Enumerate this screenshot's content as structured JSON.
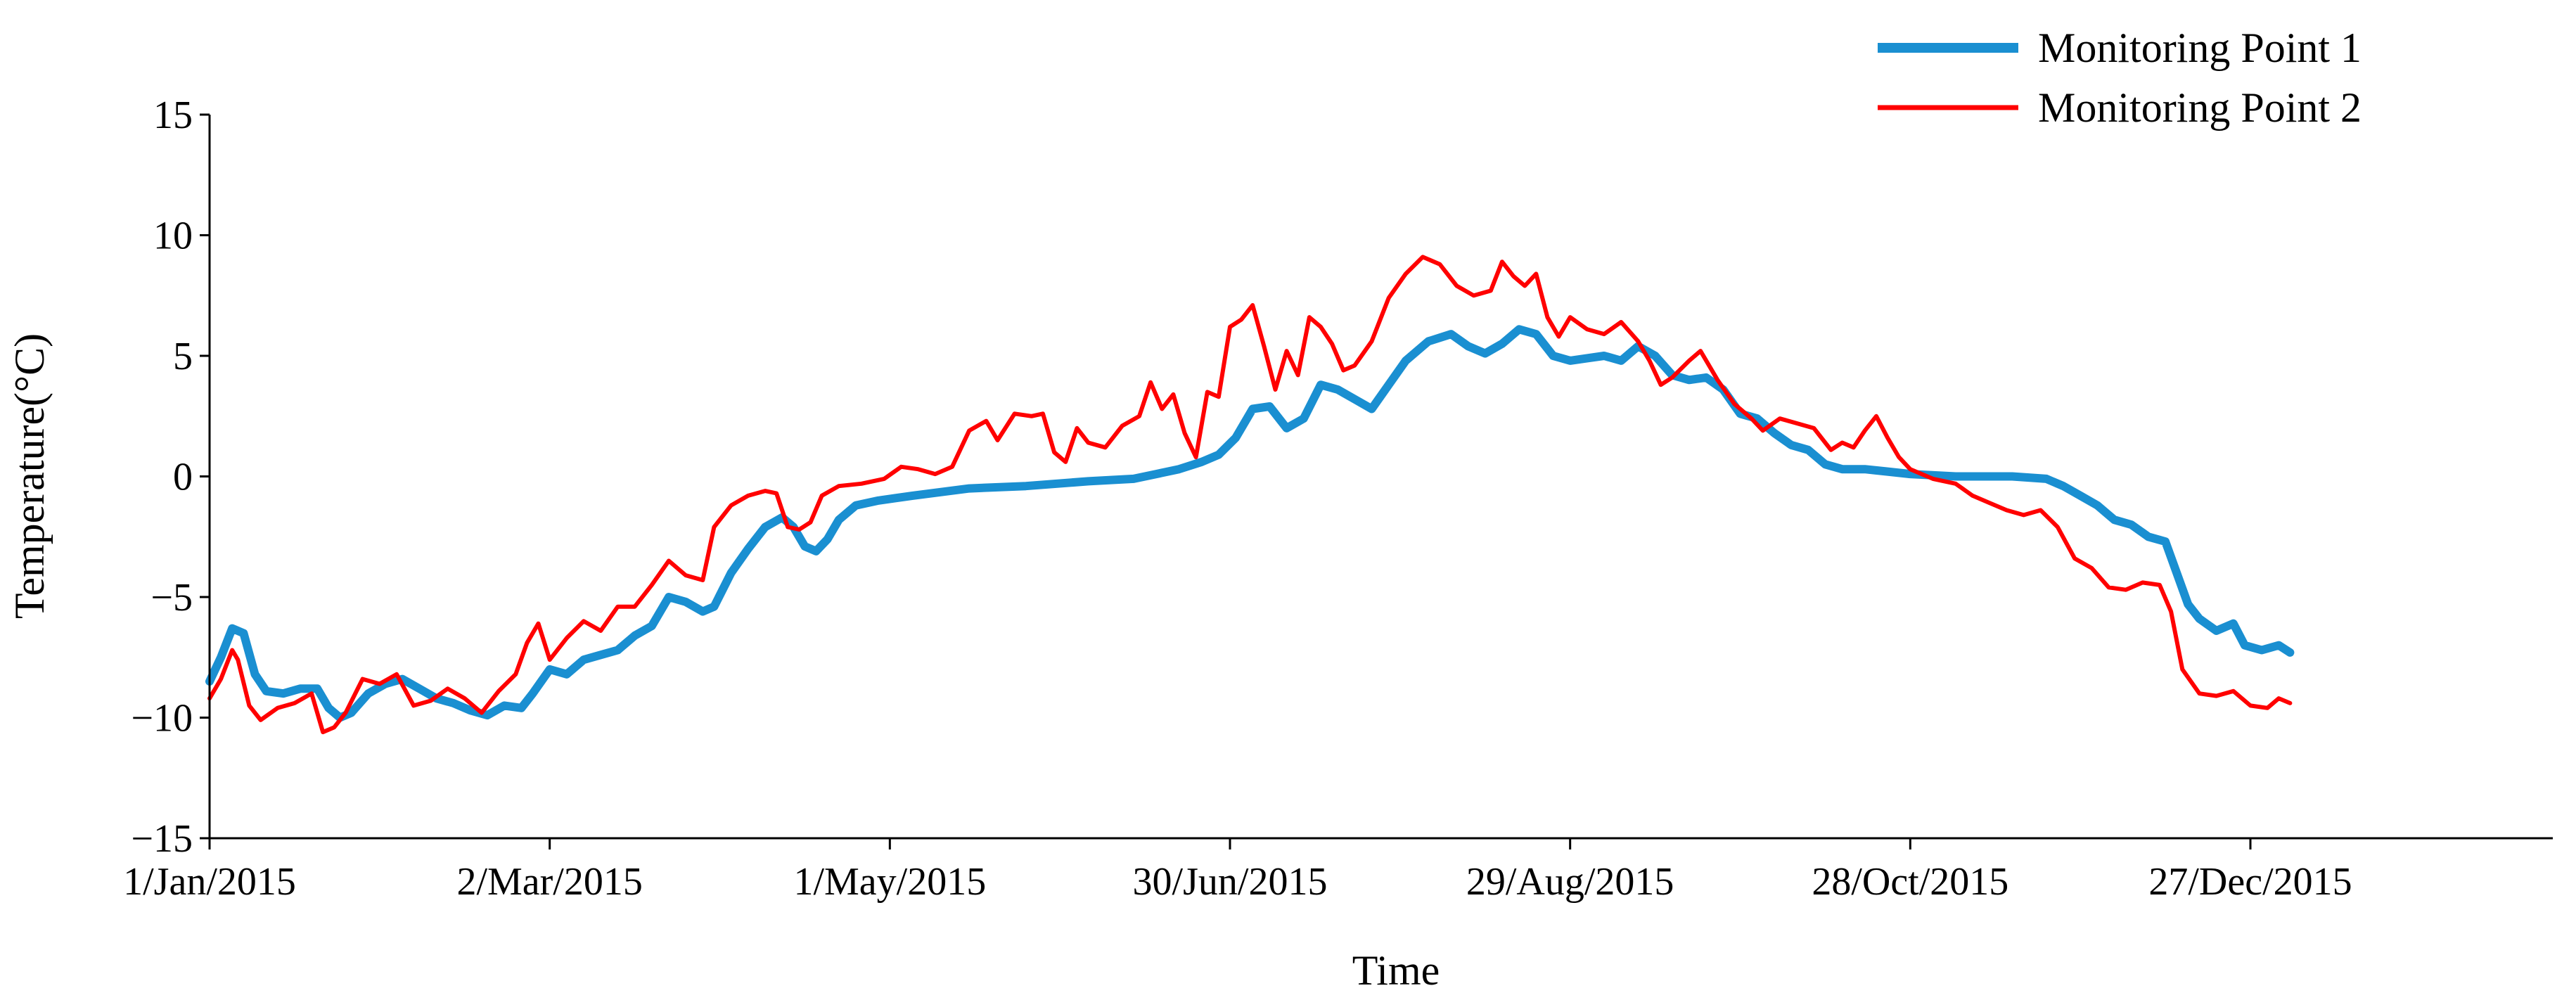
{
  "chart_data": {
    "type": "line",
    "title": "",
    "xlabel": "Time",
    "ylabel": "Temperature(°C)",
    "ylim": [
      -15,
      15
    ],
    "yticks": [
      -15,
      -10,
      -5,
      0,
      5,
      10,
      15
    ],
    "xlim": [
      "2015-01-01",
      "2016-01-06"
    ],
    "xticks": [
      {
        "date": "2015-01-01",
        "label": "1/Jan/2015"
      },
      {
        "date": "2015-03-02",
        "label": "2/Mar/2015"
      },
      {
        "date": "2015-05-01",
        "label": "1/May/2015"
      },
      {
        "date": "2015-06-30",
        "label": "30/Jun/2015"
      },
      {
        "date": "2015-08-29",
        "label": "29/Aug/2015"
      },
      {
        "date": "2015-10-28",
        "label": "28/Oct/2015"
      },
      {
        "date": "2015-12-27",
        "label": "27/Dec/2015"
      }
    ],
    "grid": false,
    "legend": "top-right",
    "series": [
      {
        "name": "Monitoring Point 1",
        "color": "#1a8fd1",
        "points": [
          [
            "2015-01-01",
            -8.5
          ],
          [
            "2015-01-03",
            -7.5
          ],
          [
            "2015-01-05",
            -6.3
          ],
          [
            "2015-01-07",
            -6.5
          ],
          [
            "2015-01-09",
            -8.2
          ],
          [
            "2015-01-11",
            -8.9
          ],
          [
            "2015-01-14",
            -9.0
          ],
          [
            "2015-01-17",
            -8.8
          ],
          [
            "2015-01-20",
            -8.8
          ],
          [
            "2015-01-22",
            -9.6
          ],
          [
            "2015-01-24",
            -10.0
          ],
          [
            "2015-01-26",
            -9.8
          ],
          [
            "2015-01-29",
            -9.0
          ],
          [
            "2015-02-01",
            -8.6
          ],
          [
            "2015-02-04",
            -8.4
          ],
          [
            "2015-02-07",
            -8.8
          ],
          [
            "2015-02-10",
            -9.2
          ],
          [
            "2015-02-13",
            -9.4
          ],
          [
            "2015-02-16",
            -9.7
          ],
          [
            "2015-02-19",
            -9.9
          ],
          [
            "2015-02-22",
            -9.5
          ],
          [
            "2015-02-25",
            -9.6
          ],
          [
            "2015-02-27",
            -9.0
          ],
          [
            "2015-03-02",
            -8.0
          ],
          [
            "2015-03-05",
            -8.2
          ],
          [
            "2015-03-08",
            -7.6
          ],
          [
            "2015-03-11",
            -7.4
          ],
          [
            "2015-03-14",
            -7.2
          ],
          [
            "2015-03-17",
            -6.6
          ],
          [
            "2015-03-20",
            -6.2
          ],
          [
            "2015-03-23",
            -5.0
          ],
          [
            "2015-03-26",
            -5.2
          ],
          [
            "2015-03-29",
            -5.6
          ],
          [
            "2015-03-31",
            -5.4
          ],
          [
            "2015-04-03",
            -4.0
          ],
          [
            "2015-04-06",
            -3.0
          ],
          [
            "2015-04-09",
            -2.1
          ],
          [
            "2015-04-12",
            -1.7
          ],
          [
            "2015-04-14",
            -2.1
          ],
          [
            "2015-04-16",
            -2.9
          ],
          [
            "2015-04-18",
            -3.1
          ],
          [
            "2015-04-20",
            -2.6
          ],
          [
            "2015-04-22",
            -1.8
          ],
          [
            "2015-04-25",
            -1.2
          ],
          [
            "2015-04-29",
            -1.0
          ],
          [
            "2015-05-05",
            -0.8
          ],
          [
            "2015-05-15",
            -0.5
          ],
          [
            "2015-05-25",
            -0.4
          ],
          [
            "2015-06-05",
            -0.2
          ],
          [
            "2015-06-13",
            -0.1
          ],
          [
            "2015-06-17",
            0.1
          ],
          [
            "2015-06-21",
            0.3
          ],
          [
            "2015-06-25",
            0.6
          ],
          [
            "2015-06-28",
            0.9
          ],
          [
            "2015-07-01",
            1.6
          ],
          [
            "2015-07-04",
            2.8
          ],
          [
            "2015-07-07",
            2.9
          ],
          [
            "2015-07-10",
            2.0
          ],
          [
            "2015-07-13",
            2.4
          ],
          [
            "2015-07-16",
            3.8
          ],
          [
            "2015-07-19",
            3.6
          ],
          [
            "2015-07-22",
            3.2
          ],
          [
            "2015-07-25",
            2.8
          ],
          [
            "2015-07-28",
            3.8
          ],
          [
            "2015-07-31",
            4.8
          ],
          [
            "2015-08-04",
            5.6
          ],
          [
            "2015-08-08",
            5.9
          ],
          [
            "2015-08-11",
            5.4
          ],
          [
            "2015-08-14",
            5.1
          ],
          [
            "2015-08-17",
            5.5
          ],
          [
            "2015-08-20",
            6.1
          ],
          [
            "2015-08-23",
            5.9
          ],
          [
            "2015-08-26",
            5.0
          ],
          [
            "2015-08-29",
            4.8
          ],
          [
            "2015-09-01",
            4.9
          ],
          [
            "2015-09-04",
            5.0
          ],
          [
            "2015-09-07",
            4.8
          ],
          [
            "2015-09-10",
            5.4
          ],
          [
            "2015-09-13",
            5.0
          ],
          [
            "2015-09-16",
            4.2
          ],
          [
            "2015-09-19",
            4.0
          ],
          [
            "2015-09-22",
            4.1
          ],
          [
            "2015-09-25",
            3.6
          ],
          [
            "2015-09-28",
            2.6
          ],
          [
            "2015-10-01",
            2.4
          ],
          [
            "2015-10-04",
            1.8
          ],
          [
            "2015-10-07",
            1.3
          ],
          [
            "2015-10-10",
            1.1
          ],
          [
            "2015-10-13",
            0.5
          ],
          [
            "2015-10-16",
            0.3
          ],
          [
            "2015-10-20",
            0.3
          ],
          [
            "2015-10-24",
            0.2
          ],
          [
            "2015-10-28",
            0.1
          ],
          [
            "2015-11-05",
            0.0
          ],
          [
            "2015-11-15",
            0.0
          ],
          [
            "2015-11-21",
            -0.1
          ],
          [
            "2015-11-24",
            -0.4
          ],
          [
            "2015-11-27",
            -0.8
          ],
          [
            "2015-11-30",
            -1.2
          ],
          [
            "2015-12-03",
            -1.8
          ],
          [
            "2015-12-06",
            -2.0
          ],
          [
            "2015-12-09",
            -2.5
          ],
          [
            "2015-12-12",
            -2.7
          ],
          [
            "2015-12-14",
            -4.0
          ],
          [
            "2015-12-16",
            -5.3
          ],
          [
            "2015-12-18",
            -5.9
          ],
          [
            "2015-12-21",
            -6.4
          ],
          [
            "2015-12-24",
            -6.1
          ],
          [
            "2015-12-26",
            -7.0
          ],
          [
            "2015-12-29",
            -7.2
          ],
          [
            "2016-01-01",
            -7.0
          ],
          [
            "2016-01-03",
            -7.3
          ]
        ]
      },
      {
        "name": "Monitoring Point 2",
        "color": "#ff0000",
        "points": [
          [
            "2015-01-01",
            -9.2
          ],
          [
            "2015-01-03",
            -8.4
          ],
          [
            "2015-01-05",
            -7.2
          ],
          [
            "2015-01-06",
            -7.6
          ],
          [
            "2015-01-08",
            -9.5
          ],
          [
            "2015-01-10",
            -10.1
          ],
          [
            "2015-01-13",
            -9.6
          ],
          [
            "2015-01-16",
            -9.4
          ],
          [
            "2015-01-19",
            -9.0
          ],
          [
            "2015-01-21",
            -10.6
          ],
          [
            "2015-01-23",
            -10.4
          ],
          [
            "2015-01-25",
            -9.8
          ],
          [
            "2015-01-28",
            -8.4
          ],
          [
            "2015-01-31",
            -8.6
          ],
          [
            "2015-02-03",
            -8.2
          ],
          [
            "2015-02-06",
            -9.5
          ],
          [
            "2015-02-09",
            -9.3
          ],
          [
            "2015-02-12",
            -8.8
          ],
          [
            "2015-02-15",
            -9.2
          ],
          [
            "2015-02-18",
            -9.8
          ],
          [
            "2015-02-21",
            -8.9
          ],
          [
            "2015-02-24",
            -8.2
          ],
          [
            "2015-02-26",
            -6.9
          ],
          [
            "2015-02-28",
            -6.1
          ],
          [
            "2015-03-02",
            -7.6
          ],
          [
            "2015-03-05",
            -6.7
          ],
          [
            "2015-03-08",
            -6.0
          ],
          [
            "2015-03-11",
            -6.4
          ],
          [
            "2015-03-14",
            -5.4
          ],
          [
            "2015-03-17",
            -5.4
          ],
          [
            "2015-03-20",
            -4.5
          ],
          [
            "2015-03-23",
            -3.5
          ],
          [
            "2015-03-26",
            -4.1
          ],
          [
            "2015-03-29",
            -4.3
          ],
          [
            "2015-03-31",
            -2.1
          ],
          [
            "2015-04-03",
            -1.2
          ],
          [
            "2015-04-06",
            -0.8
          ],
          [
            "2015-04-09",
            -0.6
          ],
          [
            "2015-04-11",
            -0.7
          ],
          [
            "2015-04-13",
            -2.1
          ],
          [
            "2015-04-15",
            -2.2
          ],
          [
            "2015-04-17",
            -1.9
          ],
          [
            "2015-04-19",
            -0.8
          ],
          [
            "2015-04-22",
            -0.4
          ],
          [
            "2015-04-26",
            -0.3
          ],
          [
            "2015-04-30",
            -0.1
          ],
          [
            "2015-05-03",
            0.4
          ],
          [
            "2015-05-06",
            0.3
          ],
          [
            "2015-05-09",
            0.1
          ],
          [
            "2015-05-12",
            0.4
          ],
          [
            "2015-05-15",
            1.9
          ],
          [
            "2015-05-18",
            2.3
          ],
          [
            "2015-05-20",
            1.5
          ],
          [
            "2015-05-23",
            2.6
          ],
          [
            "2015-05-26",
            2.5
          ],
          [
            "2015-05-28",
            2.6
          ],
          [
            "2015-05-30",
            1.0
          ],
          [
            "2015-06-01",
            0.6
          ],
          [
            "2015-06-03",
            2.0
          ],
          [
            "2015-06-05",
            1.4
          ],
          [
            "2015-06-08",
            1.2
          ],
          [
            "2015-06-11",
            2.1
          ],
          [
            "2015-06-14",
            2.5
          ],
          [
            "2015-06-16",
            3.9
          ],
          [
            "2015-06-18",
            2.8
          ],
          [
            "2015-06-20",
            3.4
          ],
          [
            "2015-06-22",
            1.8
          ],
          [
            "2015-06-24",
            0.8
          ],
          [
            "2015-06-26",
            3.5
          ],
          [
            "2015-06-28",
            3.3
          ],
          [
            "2015-06-30",
            6.2
          ],
          [
            "2015-07-02",
            6.5
          ],
          [
            "2015-07-04",
            7.1
          ],
          [
            "2015-07-06",
            5.4
          ],
          [
            "2015-07-08",
            3.6
          ],
          [
            "2015-07-10",
            5.2
          ],
          [
            "2015-07-12",
            4.2
          ],
          [
            "2015-07-14",
            6.6
          ],
          [
            "2015-07-16",
            6.2
          ],
          [
            "2015-07-18",
            5.5
          ],
          [
            "2015-07-20",
            4.4
          ],
          [
            "2015-07-22",
            4.6
          ],
          [
            "2015-07-25",
            5.6
          ],
          [
            "2015-07-28",
            7.4
          ],
          [
            "2015-07-31",
            8.4
          ],
          [
            "2015-08-03",
            9.1
          ],
          [
            "2015-08-06",
            8.8
          ],
          [
            "2015-08-09",
            7.9
          ],
          [
            "2015-08-12",
            7.5
          ],
          [
            "2015-08-15",
            7.7
          ],
          [
            "2015-08-17",
            8.9
          ],
          [
            "2015-08-19",
            8.3
          ],
          [
            "2015-08-21",
            7.9
          ],
          [
            "2015-08-23",
            8.4
          ],
          [
            "2015-08-25",
            6.6
          ],
          [
            "2015-08-27",
            5.8
          ],
          [
            "2015-08-29",
            6.6
          ],
          [
            "2015-09-01",
            6.1
          ],
          [
            "2015-09-04",
            5.9
          ],
          [
            "2015-09-07",
            6.4
          ],
          [
            "2015-09-10",
            5.6
          ],
          [
            "2015-09-12",
            4.8
          ],
          [
            "2015-09-14",
            3.8
          ],
          [
            "2015-09-16",
            4.1
          ],
          [
            "2015-09-19",
            4.8
          ],
          [
            "2015-09-21",
            5.2
          ],
          [
            "2015-09-24",
            4.0
          ],
          [
            "2015-09-27",
            3.0
          ],
          [
            "2015-09-30",
            2.4
          ],
          [
            "2015-10-02",
            1.9
          ],
          [
            "2015-10-05",
            2.4
          ],
          [
            "2015-10-08",
            2.2
          ],
          [
            "2015-10-11",
            2.0
          ],
          [
            "2015-10-14",
            1.1
          ],
          [
            "2015-10-16",
            1.4
          ],
          [
            "2015-10-18",
            1.2
          ],
          [
            "2015-10-20",
            1.9
          ],
          [
            "2015-10-22",
            2.5
          ],
          [
            "2015-10-24",
            1.6
          ],
          [
            "2015-10-26",
            0.8
          ],
          [
            "2015-10-28",
            0.3
          ],
          [
            "2015-11-01",
            -0.1
          ],
          [
            "2015-11-05",
            -0.3
          ],
          [
            "2015-11-08",
            -0.8
          ],
          [
            "2015-11-11",
            -1.1
          ],
          [
            "2015-11-14",
            -1.4
          ],
          [
            "2015-11-17",
            -1.6
          ],
          [
            "2015-11-20",
            -1.4
          ],
          [
            "2015-11-23",
            -2.1
          ],
          [
            "2015-11-26",
            -3.4
          ],
          [
            "2015-11-29",
            -3.8
          ],
          [
            "2015-12-02",
            -4.6
          ],
          [
            "2015-12-05",
            -4.7
          ],
          [
            "2015-12-08",
            -4.4
          ],
          [
            "2015-12-11",
            -4.5
          ],
          [
            "2015-12-13",
            -5.6
          ],
          [
            "2015-12-15",
            -8.0
          ],
          [
            "2015-12-18",
            -9.0
          ],
          [
            "2015-12-21",
            -9.1
          ],
          [
            "2015-12-24",
            -8.9
          ],
          [
            "2015-12-27",
            -9.5
          ],
          [
            "2015-12-30",
            -9.6
          ],
          [
            "2016-01-01",
            -9.2
          ],
          [
            "2016-01-03",
            -9.4
          ]
        ]
      }
    ]
  }
}
